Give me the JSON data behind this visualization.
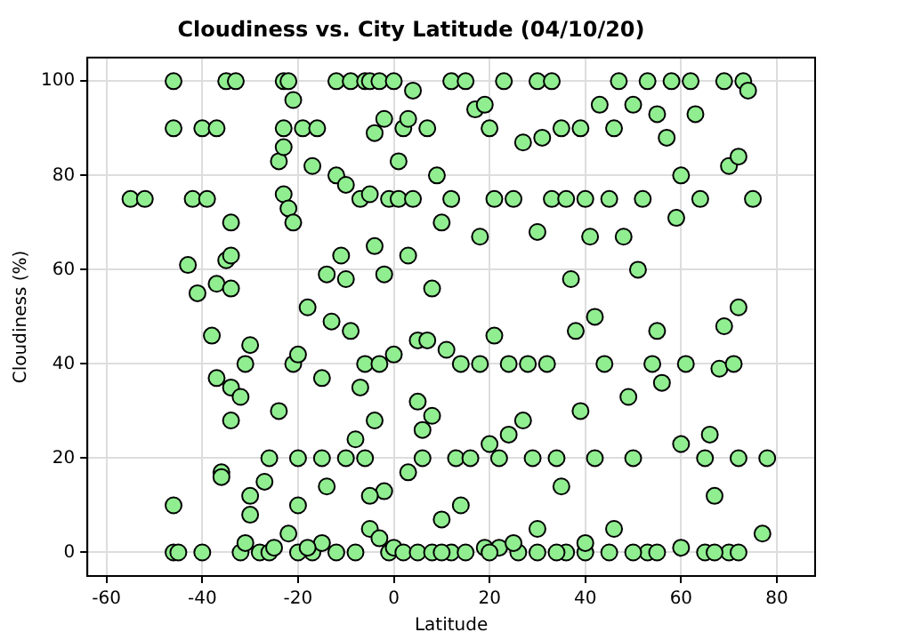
{
  "chart_data": {
    "type": "scatter",
    "title": "Cloudiness vs. City Latitude (04/10/20)",
    "xlabel": "Latitude",
    "ylabel": "Cloudiness (%)",
    "xlim": [
      -64,
      88
    ],
    "ylim": [
      -5,
      105
    ],
    "xticks": [
      -60,
      -40,
      -20,
      0,
      20,
      40,
      60,
      80
    ],
    "yticks": [
      0,
      20,
      40,
      60,
      80,
      100
    ],
    "grid": true,
    "marker": "circle",
    "series": [
      {
        "color": "#90ee90",
        "x": [
          -55,
          -52,
          -46,
          -46,
          -46,
          -46,
          -45,
          -43,
          -42,
          -41,
          -40,
          -40,
          -39,
          -38,
          -37,
          -37,
          -37,
          -36,
          -36,
          -35,
          -35,
          -34,
          -34,
          -34,
          -33,
          -34,
          -34,
          -32,
          -32,
          -31,
          -31,
          -30,
          -30,
          -30,
          -28,
          -27,
          -26,
          -26,
          -25,
          -24,
          -24,
          -23,
          -23,
          -23,
          -23,
          -22,
          -22,
          -22,
          -21,
          -21,
          -21,
          -20,
          -20,
          -20,
          -20,
          -19,
          -18,
          -17,
          -17,
          -16,
          -15,
          -15,
          -15,
          -14,
          -14,
          -13,
          -12,
          -12,
          -11,
          -10,
          -10,
          -10,
          -9,
          -9,
          -8,
          -8,
          -7,
          -7,
          -6,
          -6,
          -6,
          -5,
          -5,
          -5,
          -4,
          -4,
          -4,
          -3,
          -3,
          -2,
          -2,
          -2,
          -1,
          -1,
          0,
          0,
          1,
          1,
          2,
          3,
          3,
          3,
          4,
          4,
          5,
          5,
          6,
          6,
          7,
          7,
          8,
          8,
          9,
          10,
          10,
          11,
          12,
          12,
          12,
          13,
          14,
          14,
          15,
          15,
          16,
          17,
          18,
          18,
          19,
          19,
          20,
          20,
          21,
          21,
          22,
          22,
          23,
          24,
          24,
          25,
          26,
          27,
          27,
          28,
          29,
          30,
          30,
          30,
          31,
          32,
          33,
          33,
          34,
          35,
          35,
          36,
          36,
          37,
          38,
          39,
          39,
          40,
          40,
          41,
          42,
          42,
          43,
          44,
          45,
          46,
          46,
          47,
          48,
          49,
          50,
          50,
          51,
          52,
          53,
          53,
          54,
          55,
          55,
          56,
          57,
          58,
          59,
          60,
          60,
          61,
          62,
          63,
          64,
          65,
          65,
          66,
          67,
          68,
          69,
          69,
          70,
          70,
          71,
          72,
          72,
          73,
          72,
          78,
          77,
          74,
          75,
          0,
          2,
          5,
          8,
          10,
          20,
          25,
          30,
          34,
          40,
          45,
          50,
          55,
          60,
          67,
          72,
          -12,
          -18,
          -5,
          -3
        ],
        "values": [
          75,
          75,
          100,
          90,
          10,
          0,
          0,
          61,
          75,
          55,
          90,
          0,
          75,
          46,
          90,
          37,
          57,
          17,
          16,
          100,
          62,
          63,
          56,
          70,
          100,
          28,
          35,
          0,
          33,
          40,
          2,
          8,
          44,
          12,
          0,
          15,
          0,
          20,
          1,
          83,
          30,
          100,
          90,
          76,
          86,
          4,
          73,
          100,
          70,
          96,
          40,
          42,
          20,
          10,
          0,
          90,
          52,
          82,
          0,
          90,
          20,
          2,
          37,
          59,
          14,
          49,
          100,
          80,
          63,
          78,
          58,
          20,
          100,
          47,
          0,
          24,
          75,
          35,
          100,
          20,
          40,
          100,
          76,
          5,
          89,
          28,
          65,
          100,
          40,
          92,
          59,
          13,
          75,
          0,
          100,
          42,
          83,
          75,
          90,
          92,
          63,
          17,
          98,
          75,
          45,
          32,
          26,
          20,
          45,
          90,
          56,
          29,
          80,
          70,
          7,
          43,
          100,
          75,
          0,
          20,
          40,
          10,
          100,
          0,
          20,
          94,
          67,
          40,
          95,
          1,
          90,
          23,
          75,
          46,
          20,
          1,
          100,
          40,
          25,
          75,
          0,
          87,
          28,
          40,
          20,
          100,
          68,
          5,
          88,
          40,
          100,
          75,
          20,
          90,
          14,
          75,
          0,
          58,
          47,
          90,
          30,
          75,
          0,
          67,
          20,
          50,
          95,
          40,
          75,
          90,
          5,
          100,
          67,
          33,
          20,
          95,
          60,
          75,
          100,
          0,
          40,
          47,
          93,
          36,
          88,
          100,
          71,
          23,
          80,
          40,
          100,
          93,
          75,
          0,
          20,
          25,
          12,
          39,
          100,
          48,
          82,
          0,
          40,
          84,
          52,
          100,
          20,
          20,
          4,
          98,
          75,
          1,
          0,
          0,
          0,
          0,
          0,
          2,
          0,
          0,
          2,
          0,
          0,
          0,
          1,
          0,
          0,
          0,
          1,
          12,
          3
        ]
      }
    ]
  }
}
